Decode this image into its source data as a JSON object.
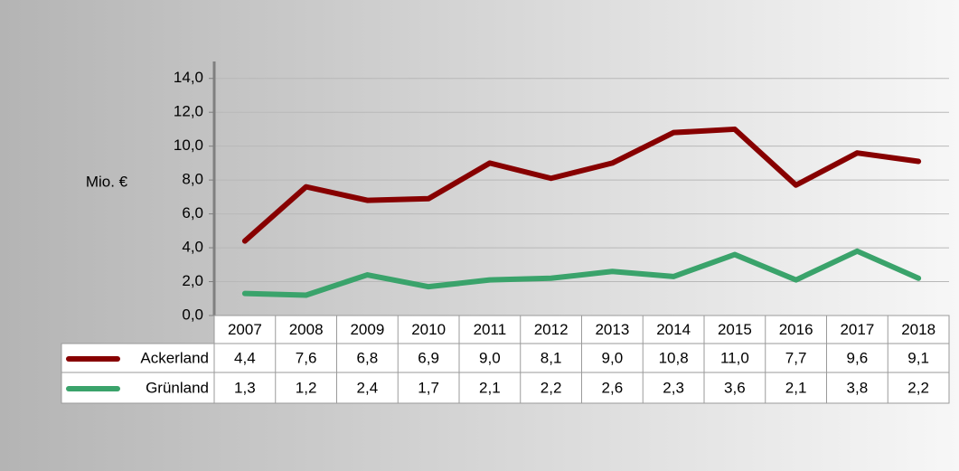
{
  "chart_data": {
    "type": "line",
    "y_label": "Mio. €",
    "categories": [
      "2007",
      "2008",
      "2009",
      "2010",
      "2011",
      "2012",
      "2013",
      "2014",
      "2015",
      "2016",
      "2017",
      "2018"
    ],
    "series": [
      {
        "name": "Ackerland",
        "color": "#870000",
        "values": [
          4.4,
          7.6,
          6.8,
          6.9,
          9.0,
          8.1,
          9.0,
          10.8,
          11.0,
          7.7,
          9.6,
          9.1
        ],
        "value_labels": [
          "4,4",
          "7,6",
          "6,8",
          "6,9",
          "9,0",
          "8,1",
          "9,0",
          "10,8",
          "11,0",
          "7,7",
          "9,6",
          "9,1"
        ]
      },
      {
        "name": "Grünland",
        "color": "#3aa36b",
        "values": [
          1.3,
          1.2,
          2.4,
          1.7,
          2.1,
          2.2,
          2.6,
          2.3,
          3.6,
          2.1,
          3.8,
          2.2
        ],
        "value_labels": [
          "1,3",
          "1,2",
          "2,4",
          "1,7",
          "2,1",
          "2,2",
          "2,6",
          "2,3",
          "3,6",
          "2,1",
          "3,8",
          "2,2"
        ]
      }
    ],
    "ylim": [
      0,
      15
    ],
    "yticks": [
      {
        "value": 0,
        "label": "0,0"
      },
      {
        "value": 2,
        "label": "2,0"
      },
      {
        "value": 4,
        "label": "4,0"
      },
      {
        "value": 6,
        "label": "6,0"
      },
      {
        "value": 8,
        "label": "8,0"
      },
      {
        "value": 10,
        "label": "10,0"
      },
      {
        "value": 12,
        "label": "12,0"
      },
      {
        "value": 14,
        "label": "14,0"
      }
    ],
    "grid": true
  }
}
